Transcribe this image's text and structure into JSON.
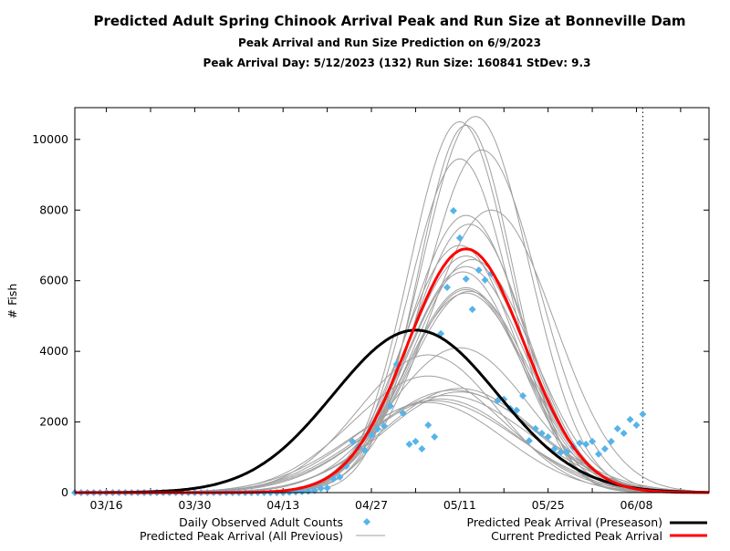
{
  "chart_data": {
    "type": "line",
    "title": "Predicted Adult Spring Chinook Arrival Peak and Run Size at Bonneville Dam",
    "subtitle": "Peak Arrival and Run Size Prediction on 6/9/2023",
    "subtitle2": "Peak Arrival Day: 5/12/2023 (132) Run Size: 160841 StDev: 9.3",
    "ylabel": "# Fish",
    "xlabel": "",
    "x_unit": "day of year 2023",
    "xlim": [
      70,
      170.5
    ],
    "ylim": [
      0,
      10900
    ],
    "yticks": [
      "0",
      "2000",
      "4000",
      "6000",
      "8000",
      "10000"
    ],
    "xticks": [
      {
        "day": 75,
        "label": "03/16"
      },
      {
        "day": 89,
        "label": "03/30"
      },
      {
        "day": 103,
        "label": "04/13"
      },
      {
        "day": 117,
        "label": "04/27"
      },
      {
        "day": 131,
        "label": "05/11"
      },
      {
        "day": 145,
        "label": "05/25"
      },
      {
        "day": 159,
        "label": "06/08"
      }
    ],
    "prediction_date_day": 160,
    "grid": false,
    "legend": {
      "placement": "bottom",
      "observed": "Daily Observed Adult Counts",
      "previous": "Predicted Peak Arrival (All Previous)",
      "preseason": "Predicted Peak Arrival (Preseason)",
      "current": "Current Predicted Peak Arrival"
    },
    "colors": {
      "observed": "#56b4e9",
      "previous": "#a0a0a0",
      "preseason": "#000000",
      "current": "#ff0000"
    },
    "observed": {
      "start_day": 70,
      "values": [
        0,
        0,
        0,
        0,
        0,
        0,
        0,
        0,
        0,
        0,
        0,
        0,
        0,
        0,
        0,
        0,
        0,
        0,
        0,
        0,
        0,
        0,
        0,
        0,
        0,
        0,
        0,
        0,
        0,
        0,
        0,
        0,
        0,
        0,
        10,
        20,
        30,
        40,
        60,
        120,
        130,
        390,
        440,
        750,
        1450,
        1300,
        1190,
        1630,
        1800,
        1890,
        2450,
        3640,
        2250,
        1370,
        1450,
        1240,
        1910,
        1580,
        4500,
        5810,
        7980,
        7210,
        6050,
        5190,
        6300,
        6020,
        6200,
        2610,
        2640,
        2380,
        2330,
        2740,
        1470,
        1810,
        1680,
        1580,
        1240,
        1140,
        1160,
        1300,
        1400,
        1370,
        1450,
        1090,
        1240,
        1450,
        1810,
        1680,
        2070,
        1910,
        2220
      ]
    },
    "current_prediction": {
      "peak_day": 132,
      "sd": 9.3,
      "peak": 6900
    },
    "preseason_prediction": {
      "peak_day": 124,
      "sd": 13,
      "peak": 4600
    },
    "previous_predictions": [
      {
        "peak_day": 131,
        "sd": 8,
        "peak": 10500
      },
      {
        "peak_day": 133.5,
        "sd": 8.5,
        "peak": 10650
      },
      {
        "peak_day": 132,
        "sd": 7.5,
        "peak": 10400
      },
      {
        "peak_day": 134.5,
        "sd": 9,
        "peak": 9700
      },
      {
        "peak_day": 131,
        "sd": 8,
        "peak": 9450
      },
      {
        "peak_day": 136,
        "sd": 10,
        "peak": 8000
      },
      {
        "peak_day": 132,
        "sd": 9,
        "peak": 7850
      },
      {
        "peak_day": 132.5,
        "sd": 9,
        "peak": 7600
      },
      {
        "peak_day": 131,
        "sd": 9,
        "peak": 7000
      },
      {
        "peak_day": 132,
        "sd": 9.5,
        "peak": 6700
      },
      {
        "peak_day": 133,
        "sd": 9.5,
        "peak": 6600
      },
      {
        "peak_day": 132,
        "sd": 9.5,
        "peak": 6400
      },
      {
        "peak_day": 131.5,
        "sd": 9,
        "peak": 6250
      },
      {
        "peak_day": 132,
        "sd": 9.5,
        "peak": 5800
      },
      {
        "peak_day": 132,
        "sd": 9.3,
        "peak": 5750
      },
      {
        "peak_day": 132.5,
        "sd": 9.6,
        "peak": 5700
      },
      {
        "peak_day": 132,
        "sd": 9.8,
        "peak": 5650
      },
      {
        "peak_day": 131,
        "sd": 11,
        "peak": 4100
      },
      {
        "peak_day": 126,
        "sd": 11,
        "peak": 3900
      },
      {
        "peak_day": 126,
        "sd": 12,
        "peak": 3300
      },
      {
        "peak_day": 131,
        "sd": 12,
        "peak": 2950
      },
      {
        "peak_day": 130,
        "sd": 13,
        "peak": 2900
      },
      {
        "peak_day": 131,
        "sd": 12,
        "peak": 2850
      },
      {
        "peak_day": 129,
        "sd": 13,
        "peak": 2750
      },
      {
        "peak_day": 128,
        "sd": 12,
        "peak": 2650
      },
      {
        "peak_day": 127,
        "sd": 13,
        "peak": 2600
      },
      {
        "peak_day": 126,
        "sd": 12,
        "peak": 2550
      }
    ]
  }
}
